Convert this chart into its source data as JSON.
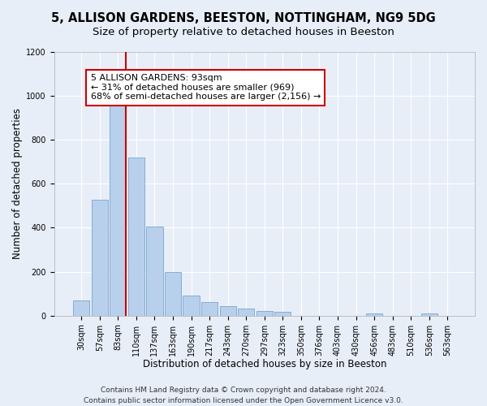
{
  "title_line1": "5, ALLISON GARDENS, BEESTON, NOTTINGHAM, NG9 5DG",
  "title_line2": "Size of property relative to detached houses in Beeston",
  "xlabel": "Distribution of detached houses by size in Beeston",
  "ylabel": "Number of detached properties",
  "categories": [
    "30sqm",
    "57sqm",
    "83sqm",
    "110sqm",
    "137sqm",
    "163sqm",
    "190sqm",
    "217sqm",
    "243sqm",
    "270sqm",
    "297sqm",
    "323sqm",
    "350sqm",
    "376sqm",
    "403sqm",
    "430sqm",
    "456sqm",
    "483sqm",
    "510sqm",
    "536sqm",
    "563sqm"
  ],
  "values": [
    68,
    527,
    1000,
    720,
    407,
    197,
    90,
    60,
    42,
    32,
    20,
    18,
    0,
    0,
    0,
    0,
    10,
    0,
    0,
    10,
    0
  ],
  "bar_color": "#b8d0eb",
  "bar_edge_color": "#6699cc",
  "vline_x_index": 2,
  "vline_color": "#cc0000",
  "ylim": [
    0,
    1200
  ],
  "yticks": [
    0,
    200,
    400,
    600,
    800,
    1000,
    1200
  ],
  "annotation_text": "5 ALLISON GARDENS: 93sqm\n← 31% of detached houses are smaller (969)\n68% of semi-detached houses are larger (2,156) →",
  "annotation_box_facecolor": "#ffffff",
  "annotation_box_edgecolor": "#cc0000",
  "footer_line1": "Contains HM Land Registry data © Crown copyright and database right 2024.",
  "footer_line2": "Contains public sector information licensed under the Open Government Licence v3.0.",
  "background_color": "#e8eef8",
  "plot_bg_color": "#e8eef8",
  "title_fontsize": 10.5,
  "subtitle_fontsize": 9.5,
  "axis_label_fontsize": 8.5,
  "tick_fontsize": 7,
  "annotation_fontsize": 8,
  "footer_fontsize": 6.5
}
